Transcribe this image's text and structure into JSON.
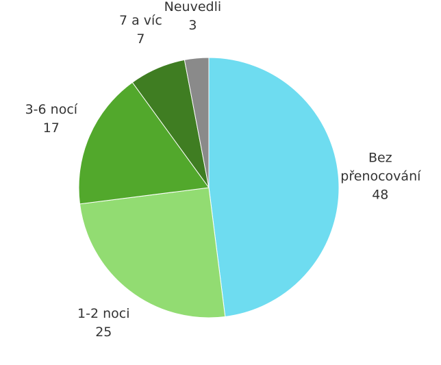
{
  "chart_data": {
    "type": "pie",
    "categories": [
      "Bez přenocování",
      "1-2 noci",
      "3-6 nocí",
      "7 a víc",
      "Neuvedli"
    ],
    "values": [
      48,
      25,
      17,
      7,
      3
    ],
    "colors": [
      "#6edcf0",
      "#92dc72",
      "#52a82c",
      "#3f7d22",
      "#8a8a8a"
    ]
  }
}
